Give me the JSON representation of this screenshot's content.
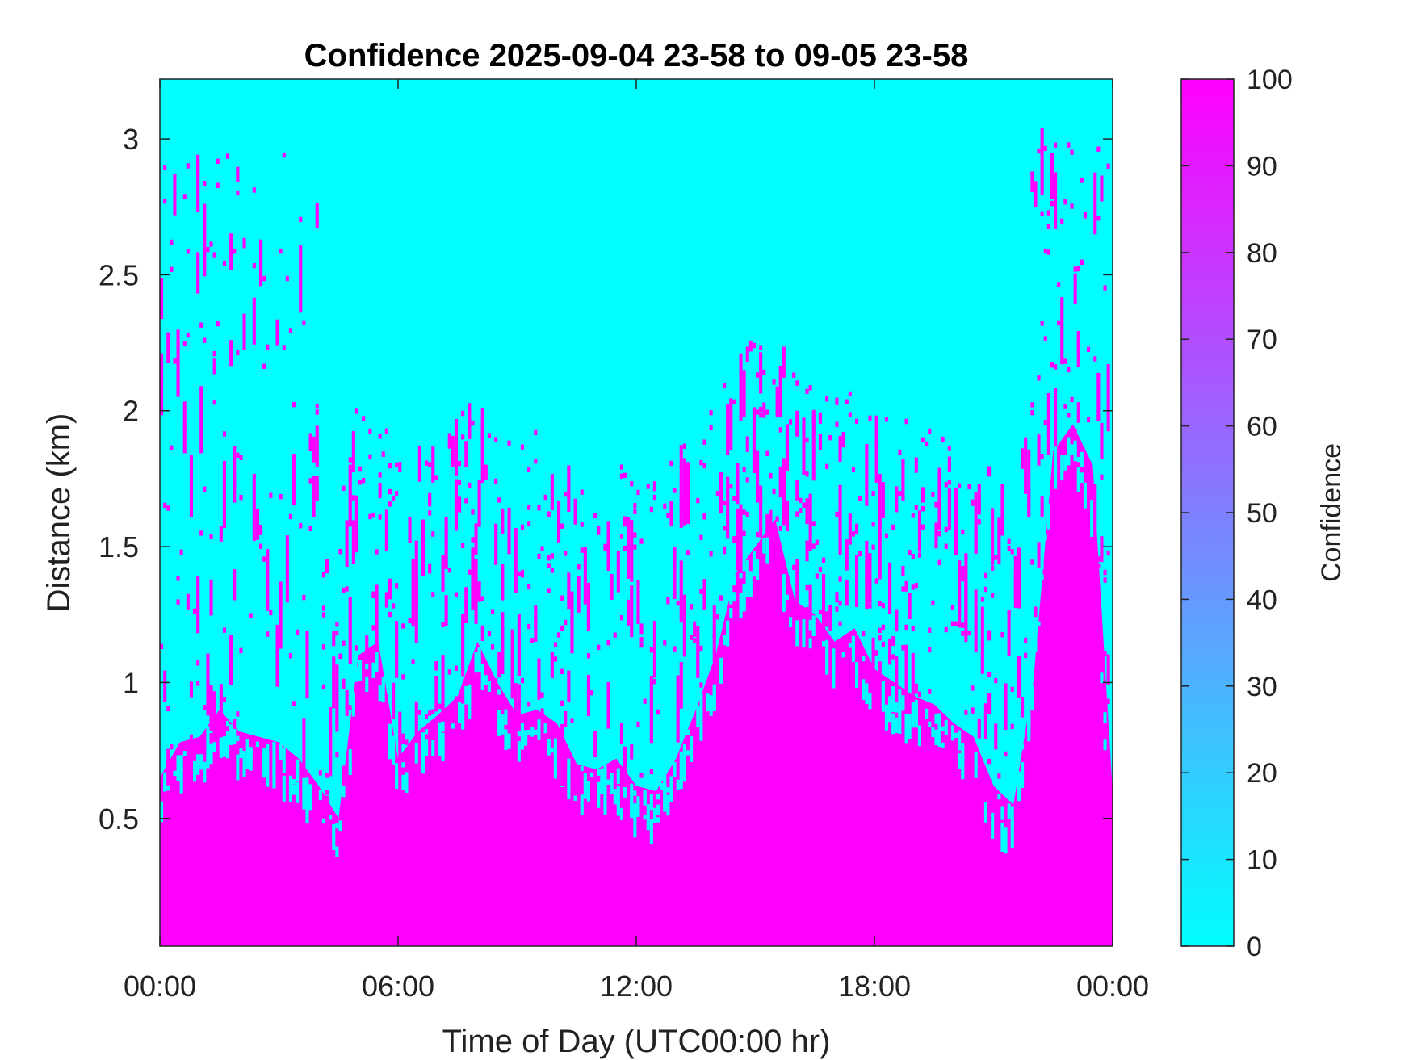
{
  "chart_data": {
    "type": "heatmap",
    "title": "Confidence 2025-09-04 23-58 to 09-05 23-58",
    "xlabel": "Time of Day (UTC00:00 hr)",
    "ylabel": "Distance (km)",
    "x_tick_labels": [
      "00:00",
      "06:00",
      "12:00",
      "18:00",
      "00:00"
    ],
    "x_range_hours": [
      0,
      24
    ],
    "y_ticks": [
      0.5,
      1,
      1.5,
      2,
      2.5,
      3
    ],
    "y_tick_labels": [
      "0.5",
      "1",
      "1.5",
      "2",
      "2.5",
      "3"
    ],
    "y_range_km": [
      0.03,
      3.22
    ],
    "grid": false,
    "colorbar": {
      "label": "Confidence",
      "range": [
        0,
        100
      ],
      "ticks": [
        0,
        10,
        20,
        30,
        40,
        50,
        60,
        70,
        80,
        90,
        100
      ],
      "tick_labels": [
        "0",
        "10",
        "20",
        "30",
        "40",
        "50",
        "60",
        "70",
        "80",
        "90",
        "100"
      ],
      "color_min": "#00ffff",
      "color_max": "#ff00ff"
    },
    "high_confidence_boundary_km": {
      "hours": [
        0,
        0.5,
        1,
        1.5,
        2,
        2.5,
        3,
        3.5,
        4,
        4.5,
        5,
        5.5,
        6,
        6.5,
        7,
        7.5,
        8,
        8.5,
        9,
        9.5,
        10,
        10.5,
        11,
        11.5,
        12,
        12.5,
        13,
        13.5,
        14,
        14.5,
        15,
        15.5,
        16,
        16.5,
        17,
        17.5,
        18,
        18.5,
        19,
        19.5,
        20,
        20.5,
        21,
        21.5,
        22,
        22.5,
        23,
        23.5,
        24
      ],
      "top_km": [
        0.65,
        0.78,
        0.8,
        0.9,
        0.82,
        0.8,
        0.78,
        0.72,
        0.62,
        0.5,
        1.1,
        1.15,
        0.72,
        0.82,
        0.88,
        0.95,
        1.15,
        1.0,
        0.88,
        0.9,
        0.85,
        0.7,
        0.68,
        0.72,
        0.62,
        0.6,
        0.72,
        0.9,
        1.1,
        1.4,
        1.5,
        1.6,
        1.3,
        1.25,
        1.15,
        1.2,
        1.05,
        1.0,
        0.95,
        0.92,
        0.85,
        0.8,
        0.62,
        0.55,
        1.0,
        1.85,
        1.95,
        1.8,
        0.6
      ]
    }
  }
}
